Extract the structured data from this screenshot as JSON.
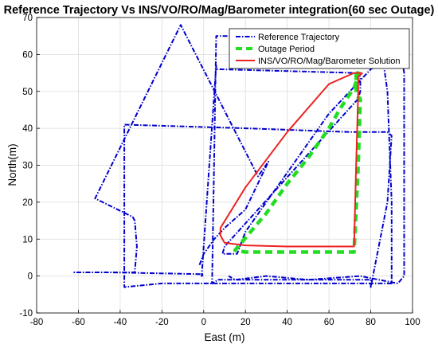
{
  "chart_data": {
    "type": "line",
    "title": "Reference Trajectory Vs INS/VO/RO/Mag/Barometer integration(60 sec Outage)",
    "xlabel": "East (m)",
    "ylabel": "North(m)",
    "xlim": [
      -80,
      100
    ],
    "ylim": [
      -10,
      70
    ],
    "xticks": [
      -80,
      -60,
      -40,
      -20,
      0,
      20,
      40,
      60,
      80,
      100
    ],
    "yticks": [
      -10,
      0,
      10,
      20,
      30,
      40,
      50,
      60,
      70
    ],
    "grid": true,
    "legend_position": "top-right",
    "series": [
      {
        "name": "Reference Trajectory",
        "color": "#0000cc",
        "style": "dash-dot",
        "x": [
          -2,
          0,
          5,
          10,
          20,
          31,
          26,
          -11,
          -52,
          -34,
          -33,
          -32,
          -33,
          -62,
          -45,
          0,
          -1,
          6,
          6,
          7,
          73,
          75,
          75,
          74,
          10,
          9,
          16,
          20,
          30,
          40,
          50,
          60,
          70,
          80,
          86,
          88,
          90,
          90,
          -20,
          -38,
          -38,
          20,
          70,
          88,
          90,
          88,
          80,
          80,
          7,
          4,
          6,
          80,
          94,
          96,
          96,
          93,
          84,
          75,
          50,
          30,
          15,
          12
        ],
        "y": [
          3,
          6,
          10,
          13,
          18,
          31,
          27,
          68,
          21,
          16,
          15,
          8,
          1,
          1,
          1,
          0.5,
          0,
          57,
          56,
          56,
          55,
          54,
          50,
          48,
          8,
          6,
          6,
          12,
          20,
          28,
          36,
          44,
          50,
          56,
          58,
          50,
          20,
          -2,
          -2,
          -3,
          41,
          40,
          39,
          39,
          38,
          20,
          -3,
          -1,
          -1,
          -2,
          65,
          65,
          62,
          55,
          0,
          -2,
          -1,
          0,
          -1,
          0,
          -1,
          0
        ]
      },
      {
        "name": "Outage Period",
        "color": "#22dd22",
        "style": "dash",
        "x": [
          73,
          73,
          75,
          74,
          72,
          60,
          50,
          40,
          30,
          20,
          15,
          30,
          40,
          50,
          60,
          65,
          72,
          74,
          74,
          73
        ],
        "y": [
          55,
          49,
          48,
          30,
          6.5,
          6.5,
          6.5,
          6.5,
          6.5,
          6.5,
          7,
          17,
          25,
          32,
          40,
          45,
          51,
          54,
          55,
          55
        ]
      },
      {
        "name": "INS/VO/RO/Mag/Barometer Solution",
        "color": "#ee2222",
        "style": "solid",
        "x": [
          76,
          74,
          74,
          73,
          72,
          60,
          40,
          20,
          10,
          8,
          8,
          20,
          40,
          60,
          72,
          75,
          76,
          76
        ],
        "y": [
          55,
          54,
          50,
          30,
          8,
          8,
          8,
          8.3,
          9,
          11,
          13,
          24,
          39,
          52,
          55,
          55,
          55,
          55
        ]
      }
    ]
  }
}
